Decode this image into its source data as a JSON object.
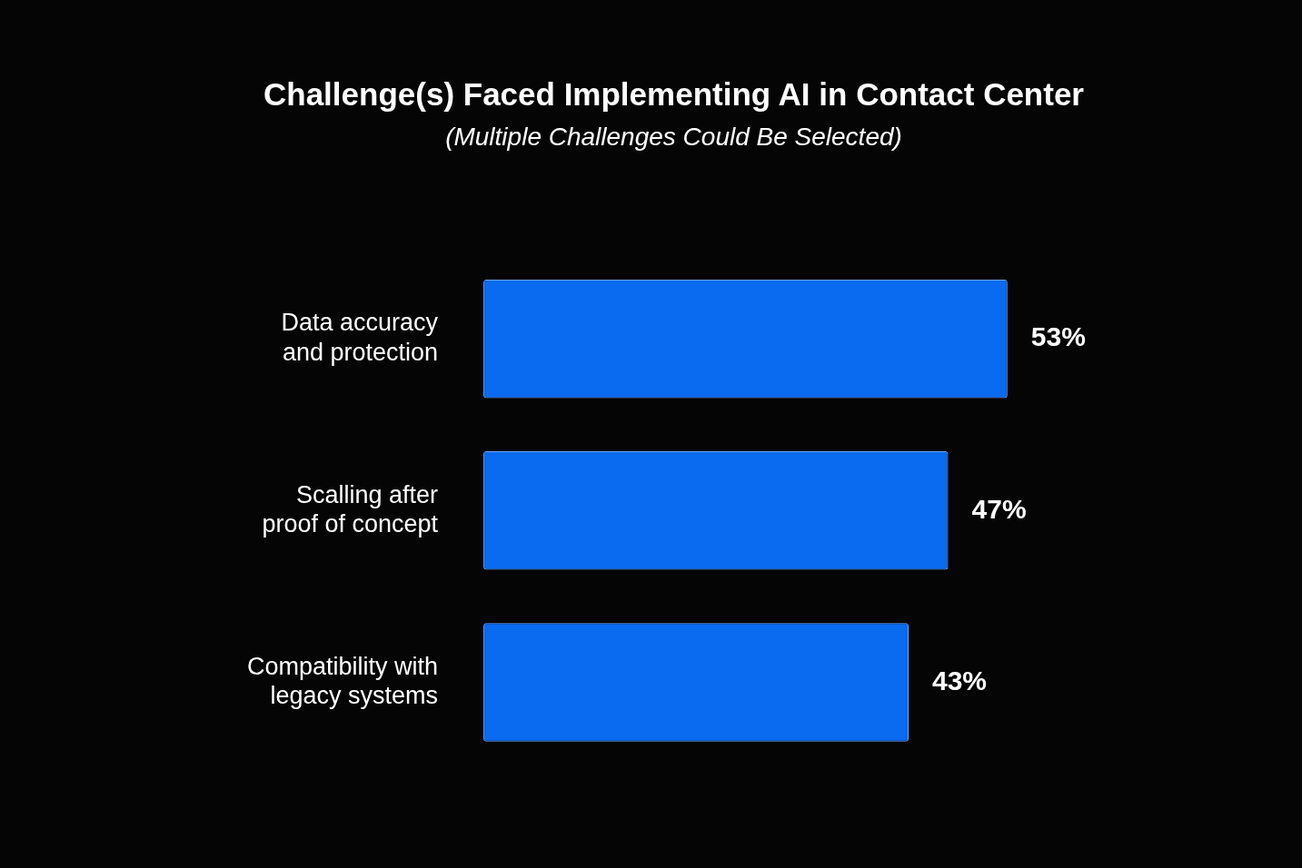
{
  "chart_data": {
    "type": "bar",
    "orientation": "horizontal",
    "title": "Challenge(s) Faced Implementing AI in Contact Center",
    "subtitle": "(Multiple Challenges Could Be Selected)",
    "categories": [
      "Data accuracy and protection",
      "Scalling after proof of concept",
      "Compatibility with legacy systems"
    ],
    "values": [
      53,
      47,
      43
    ],
    "value_labels": [
      "53%",
      "47%",
      "43%"
    ],
    "color": "#0a6af0",
    "legend": false
  }
}
